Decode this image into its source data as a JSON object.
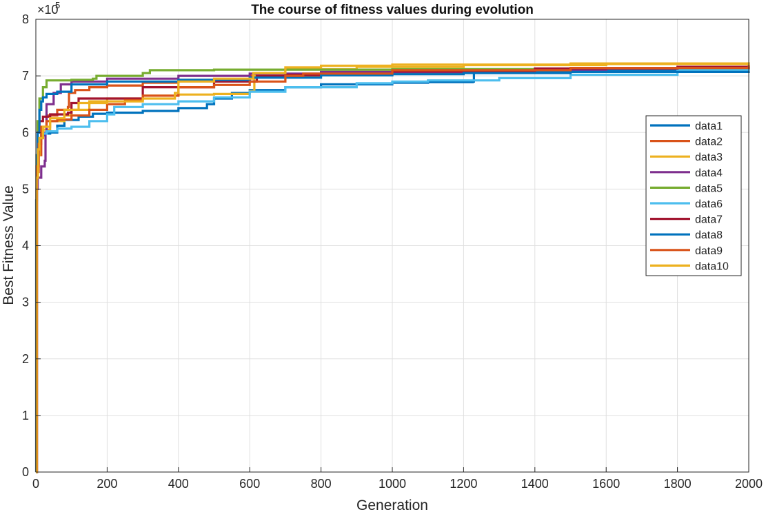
{
  "chart_data": {
    "type": "line",
    "title": "The course of fitness values during evolution",
    "xlabel": "Generation",
    "ylabel": "Best Fitness Value",
    "xlim": [
      0,
      2000
    ],
    "ylim": [
      0,
      800000
    ],
    "y_multiplier": "×10",
    "y_multiplier_exp": "5",
    "xticks": [
      0,
      200,
      400,
      600,
      800,
      1000,
      1200,
      1400,
      1600,
      1800,
      2000
    ],
    "yticks": [
      0,
      1,
      2,
      3,
      4,
      5,
      6,
      7,
      8
    ],
    "grid": true,
    "legend_position": "right",
    "series": [
      {
        "name": "data1",
        "color": "#0072BD",
        "points": [
          [
            0,
            0
          ],
          [
            1,
            480000
          ],
          [
            3,
            550000
          ],
          [
            6,
            580000
          ],
          [
            10,
            590000
          ],
          [
            15,
            595000
          ],
          [
            25,
            598000
          ],
          [
            40,
            600000
          ],
          [
            60,
            612000
          ],
          [
            80,
            622000
          ],
          [
            120,
            628000
          ],
          [
            160,
            633000
          ],
          [
            200,
            635000
          ],
          [
            300,
            638000
          ],
          [
            400,
            643000
          ],
          [
            480,
            650000
          ],
          [
            500,
            660000
          ],
          [
            550,
            670000
          ],
          [
            600,
            675000
          ],
          [
            700,
            680000
          ],
          [
            800,
            685000
          ],
          [
            1000,
            688000
          ],
          [
            1100,
            689000
          ],
          [
            1226,
            690000
          ],
          [
            1229,
            708000
          ],
          [
            1500,
            709000
          ],
          [
            2000,
            710000
          ]
        ]
      },
      {
        "name": "data2",
        "color": "#D95319",
        "points": [
          [
            0,
            0
          ],
          [
            3,
            530000
          ],
          [
            8,
            560000
          ],
          [
            15,
            600000
          ],
          [
            30,
            630000
          ],
          [
            60,
            640000
          ],
          [
            90,
            645000
          ],
          [
            93,
            670000
          ],
          [
            110,
            675000
          ],
          [
            150,
            680000
          ],
          [
            200,
            683000
          ],
          [
            300,
            688000
          ],
          [
            400,
            693000
          ],
          [
            600,
            700000
          ],
          [
            800,
            705000
          ],
          [
            1200,
            710000
          ],
          [
            1600,
            713000
          ],
          [
            2000,
            715000
          ]
        ]
      },
      {
        "name": "data3",
        "color": "#EDB120",
        "points": [
          [
            0,
            0
          ],
          [
            2,
            500000
          ],
          [
            5,
            560000
          ],
          [
            10,
            590000
          ],
          [
            20,
            605000
          ],
          [
            40,
            620000
          ],
          [
            80,
            630000
          ],
          [
            100,
            640000
          ],
          [
            150,
            655000
          ],
          [
            200,
            660000
          ],
          [
            300,
            665000
          ],
          [
            400,
            667000
          ],
          [
            500,
            668000
          ],
          [
            600,
            673000
          ],
          [
            613,
            700000
          ],
          [
            700,
            712000
          ],
          [
            900,
            716000
          ],
          [
            1200,
            719000
          ],
          [
            1600,
            721000
          ],
          [
            2000,
            722000
          ]
        ]
      },
      {
        "name": "data4",
        "color": "#7E2F8E",
        "points": [
          [
            0,
            0
          ],
          [
            2,
            500000
          ],
          [
            5,
            520000
          ],
          [
            15,
            540000
          ],
          [
            25,
            550000
          ],
          [
            27,
            600000
          ],
          [
            30,
            650000
          ],
          [
            50,
            670000
          ],
          [
            70,
            685000
          ],
          [
            100,
            690000
          ],
          [
            200,
            695000
          ],
          [
            400,
            700000
          ],
          [
            600,
            704000
          ],
          [
            800,
            707000
          ],
          [
            1200,
            710000
          ],
          [
            1600,
            713000
          ],
          [
            2000,
            715000
          ]
        ]
      },
      {
        "name": "data5",
        "color": "#77AC30",
        "points": [
          [
            0,
            0
          ],
          [
            2,
            560000
          ],
          [
            5,
            620000
          ],
          [
            10,
            660000
          ],
          [
            20,
            680000
          ],
          [
            30,
            692000
          ],
          [
            100,
            693000
          ],
          [
            160,
            695000
          ],
          [
            170,
            700000
          ],
          [
            300,
            705000
          ],
          [
            320,
            710000
          ],
          [
            500,
            711000
          ],
          [
            1000,
            712000
          ],
          [
            1500,
            713000
          ],
          [
            2000,
            715000
          ]
        ]
      },
      {
        "name": "data6",
        "color": "#4DBEEE",
        "points": [
          [
            0,
            0
          ],
          [
            3,
            560000
          ],
          [
            8,
            590000
          ],
          [
            15,
            598000
          ],
          [
            30,
            602000
          ],
          [
            60,
            607000
          ],
          [
            100,
            610000
          ],
          [
            150,
            620000
          ],
          [
            200,
            632000
          ],
          [
            220,
            645000
          ],
          [
            300,
            650000
          ],
          [
            400,
            655000
          ],
          [
            500,
            662000
          ],
          [
            600,
            672000
          ],
          [
            700,
            680000
          ],
          [
            900,
            687000
          ],
          [
            1000,
            690000
          ],
          [
            1100,
            692000
          ],
          [
            1300,
            696000
          ],
          [
            1500,
            702000
          ],
          [
            1800,
            710000
          ],
          [
            2000,
            718000
          ]
        ]
      },
      {
        "name": "data7",
        "color": "#A2142F",
        "points": [
          [
            0,
            0
          ],
          [
            2,
            540000
          ],
          [
            5,
            600000
          ],
          [
            10,
            620000
          ],
          [
            20,
            628000
          ],
          [
            40,
            632000
          ],
          [
            90,
            635000
          ],
          [
            100,
            652000
          ],
          [
            120,
            660000
          ],
          [
            300,
            680000
          ],
          [
            500,
            690000
          ],
          [
            620,
            700000
          ],
          [
            700,
            702000
          ],
          [
            1000,
            708000
          ],
          [
            1400,
            713000
          ],
          [
            1800,
            716000
          ],
          [
            2000,
            718000
          ]
        ]
      },
      {
        "name": "data8",
        "color": "#0072BD",
        "points": [
          [
            0,
            0
          ],
          [
            2,
            560000
          ],
          [
            5,
            600000
          ],
          [
            10,
            640000
          ],
          [
            15,
            655000
          ],
          [
            20,
            662000
          ],
          [
            30,
            668000
          ],
          [
            60,
            672000
          ],
          [
            100,
            685000
          ],
          [
            200,
            690000
          ],
          [
            400,
            693000
          ],
          [
            600,
            697000
          ],
          [
            800,
            701000
          ],
          [
            1000,
            703000
          ],
          [
            1200,
            705000
          ],
          [
            1500,
            707000
          ],
          [
            2000,
            708000
          ]
        ]
      },
      {
        "name": "data9",
        "color": "#D95319",
        "points": [
          [
            0,
            0
          ],
          [
            3,
            540000
          ],
          [
            8,
            580000
          ],
          [
            15,
            610000
          ],
          [
            30,
            620000
          ],
          [
            60,
            623000
          ],
          [
            100,
            630000
          ],
          [
            150,
            640000
          ],
          [
            200,
            650000
          ],
          [
            250,
            657000
          ],
          [
            300,
            665000
          ],
          [
            400,
            680000
          ],
          [
            500,
            684000
          ],
          [
            600,
            690000
          ],
          [
            700,
            700000
          ],
          [
            750,
            704000
          ],
          [
            1000,
            710000
          ],
          [
            1500,
            714000
          ],
          [
            2000,
            719000
          ]
        ]
      },
      {
        "name": "data10",
        "color": "#EDB120",
        "points": [
          [
            0,
            0
          ],
          [
            2,
            520000
          ],
          [
            6,
            570000
          ],
          [
            10,
            590000
          ],
          [
            20,
            610000
          ],
          [
            40,
            625000
          ],
          [
            80,
            640000
          ],
          [
            120,
            652000
          ],
          [
            200,
            655000
          ],
          [
            300,
            660000
          ],
          [
            390,
            670000
          ],
          [
            400,
            690000
          ],
          [
            500,
            695000
          ],
          [
            610,
            705000
          ],
          [
            700,
            715000
          ],
          [
            800,
            718000
          ],
          [
            1000,
            720000
          ],
          [
            1500,
            722000
          ],
          [
            2000,
            724000
          ]
        ]
      }
    ]
  }
}
